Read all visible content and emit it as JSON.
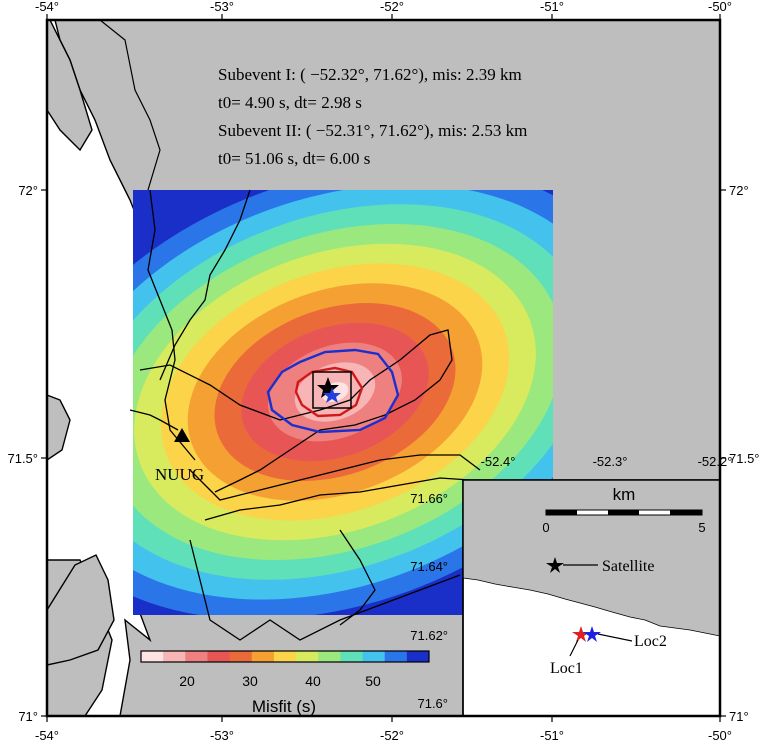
{
  "map": {
    "lon_ticks": [
      "-54°",
      "-53°",
      "-52°",
      "-51°",
      "-50°"
    ],
    "lat_ticks": [
      "71°",
      "71.5°",
      "72°"
    ],
    "land_color": "#bebebe",
    "water_color": "#ffffff"
  },
  "annotations": {
    "line1": "Subevent I: ( −52.32°,  71.62°), mis: 2.39 km",
    "line2": "t0= 4.90 s, dt= 2.98 s",
    "line3": "Subevent II: ( −52.31°,  71.62°), mis: 2.53 km",
    "line4": "t0= 51.06 s, dt= 6.00 s"
  },
  "station": {
    "label": "NUUG",
    "marker": "triangle-icon"
  },
  "misfit_grid": {
    "lon_range": [
      -53.5,
      -51.0
    ],
    "lat_range": [
      71.2,
      72.0
    ],
    "center_lon": -52.32,
    "center_lat": 71.62,
    "palette": [
      "#fde3e3",
      "#f7b5b5",
      "#ee8080",
      "#e85555",
      "#ea6a3a",
      "#f5a033",
      "#fbd44a",
      "#d8ea5e",
      "#9be87f",
      "#5fe0b8",
      "#44c2ee",
      "#2a76e8",
      "#1a2fc8"
    ]
  },
  "colorbar": {
    "title": "Misfit (s)",
    "ticks": [
      "20",
      "30",
      "40",
      "50"
    ]
  },
  "inset": {
    "lon_ticks": [
      "-52.4°",
      "-52.3°",
      "-52.2°"
    ],
    "lat_ticks": [
      "71.66°",
      "71.64°",
      "71.62°",
      "71.6°"
    ],
    "scale_title": "km",
    "scale_ticks": [
      "0",
      "5"
    ],
    "satellite_label": "Satellite",
    "loc1_label": "Loc1",
    "loc2_label": "Loc2",
    "loc1_color": "#e02020",
    "loc2_color": "#2020e0"
  },
  "corner_labels": {
    "right_71_5": "71.5°",
    "right_72": "72°",
    "right_71": "71°"
  }
}
